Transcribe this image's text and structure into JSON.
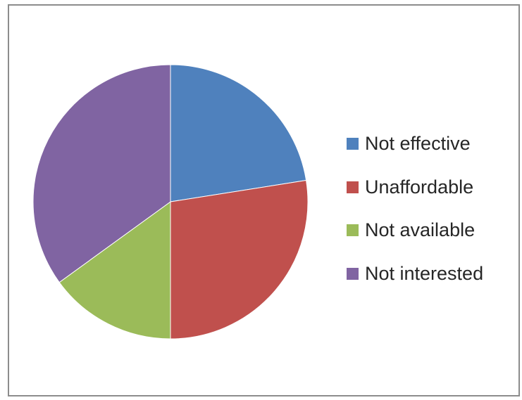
{
  "chart_data": {
    "type": "pie",
    "categories": [
      "Not effective",
      "Unaffordable",
      "Not available",
      "Not interested"
    ],
    "values": [
      22.5,
      27.5,
      15,
      35
    ],
    "colors": [
      "#4f81bd",
      "#c0504d",
      "#9bbb59",
      "#8064a2"
    ],
    "legend": "right"
  }
}
